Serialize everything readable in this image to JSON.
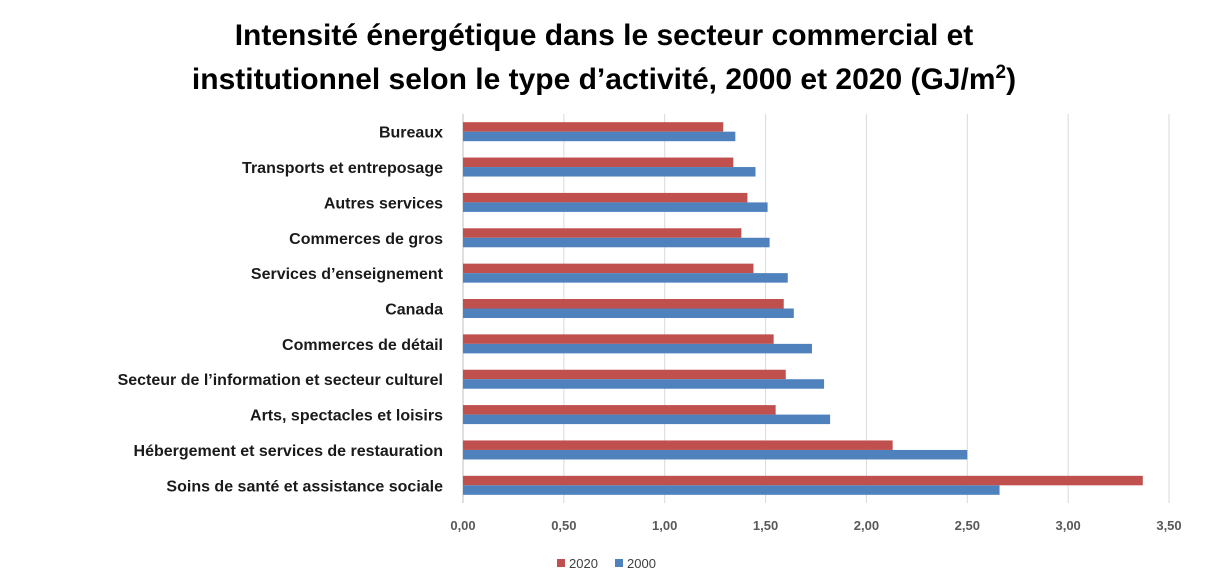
{
  "chart_data": {
    "type": "bar",
    "orientation": "horizontal",
    "title_line1": "Intensité énergétique dans le secteur commercial et",
    "title_line2": "institutionnel selon le type d’activité, 2000 et 2020 (GJ/m",
    "title_sup": "2",
    "title_end": ")",
    "categories": [
      "Bureaux",
      "Transports et entreposage",
      "Autres services",
      "Commerces de gros",
      "Services d’enseignement",
      "Canada",
      "Commerces de détail",
      "Secteur de l’information  et secteur culturel",
      "Arts, spectacles et loisirs",
      "Hébergement et services de restauration",
      "Soins de santé et assistance sociale"
    ],
    "series": [
      {
        "name": "2020",
        "color": "#c0504d",
        "values": [
          1.29,
          1.34,
          1.41,
          1.38,
          1.44,
          1.59,
          1.54,
          1.6,
          1.55,
          2.13,
          3.37
        ]
      },
      {
        "name": "2000",
        "color": "#4f81bd",
        "values": [
          1.35,
          1.45,
          1.51,
          1.52,
          1.61,
          1.64,
          1.73,
          1.79,
          1.82,
          2.5,
          2.66
        ]
      }
    ],
    "xlim": [
      0,
      3.5
    ],
    "xticks": [
      "0,00",
      "0,50",
      "1,00",
      "1,50",
      "2,00",
      "2,50",
      "3,00",
      "3,50"
    ],
    "grid": true,
    "legend_position": "bottom"
  }
}
